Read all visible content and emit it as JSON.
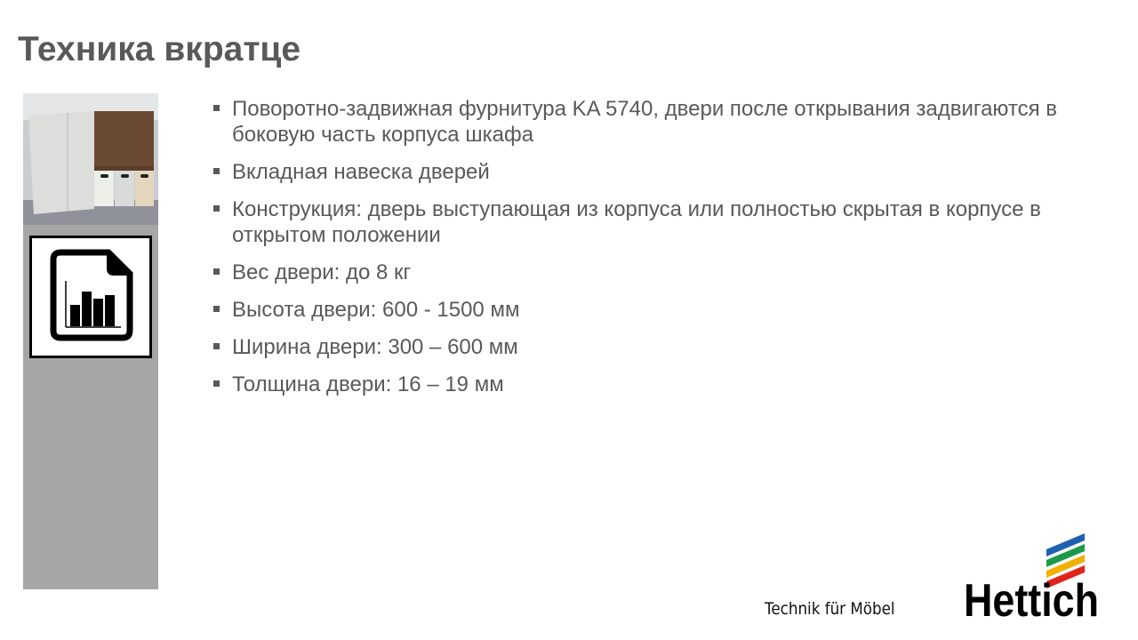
{
  "title": "Техника вкратце",
  "bullets": [
    "Поворотно-задвижная фурнитура KA 5740, двери после открывания задвигаются в боковую часть корпуса шкафа",
    "Вкладная навеска дверей",
    "Конструкция: дверь выступающая из корпуса или полностью скрытая в корпусе в открытом положении",
    "Вес двери: до 8 кг",
    "Высота двери: 600 - 1500 мм",
    "Ширина двери: 300 – 600 мм",
    "Толщина двери: 16 – 19 мм"
  ],
  "footer": {
    "slogan": "Technik für Möbel",
    "brand": "Hettich"
  },
  "icons": {
    "sidebar_icon": "document-chart-icon"
  },
  "colors": {
    "text": "#595959",
    "sidebar": "#a6a6a6",
    "logo_stripes": [
      "#1f5fb0",
      "#1a9a4a",
      "#f2b000",
      "#e2231a"
    ]
  }
}
